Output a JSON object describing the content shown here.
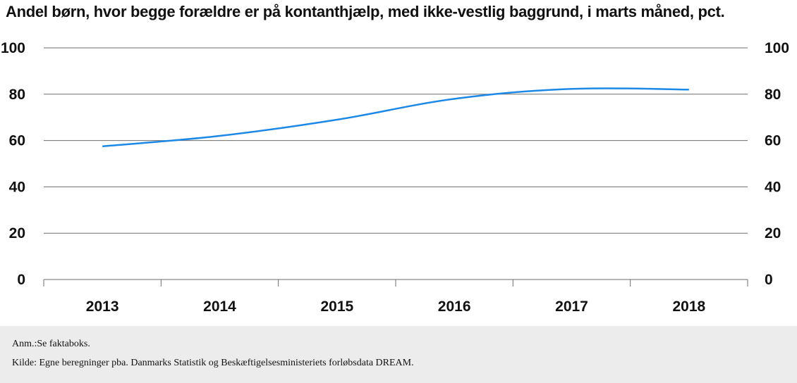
{
  "title": "Andel børn, hvor begge forældre er på kontanthjælp, med ikke-vestlig baggrund, i marts måned, pct.",
  "footer": {
    "note": "Anm.:Se faktaboks.",
    "source": "Kilde: Egne beregninger pba. Danmarks Statistik og Beskæftigelsesministeriets forløbsdata DREAM."
  },
  "colors": {
    "line": "#1e88e5",
    "grid": "#6d6d6d",
    "footer_bg": "#ececec"
  },
  "chart_data": {
    "type": "line",
    "title": "Andel børn, hvor begge forældre er på kontanthjælp, med ikke-vestlig baggrund, i marts måned, pct.",
    "categories": [
      "2013",
      "2014",
      "2015",
      "2016",
      "2017",
      "2018"
    ],
    "series": [
      {
        "values": [
          57.5,
          62,
          69,
          78,
          82.3,
          82
        ]
      }
    ],
    "ylim": [
      0,
      100
    ],
    "yticks": [
      "0",
      "20",
      "40",
      "60",
      "80",
      "100"
    ],
    "y2ticks": [
      "0",
      "20",
      "40",
      "60",
      "80",
      "100"
    ],
    "grid": true,
    "legend": "none"
  }
}
